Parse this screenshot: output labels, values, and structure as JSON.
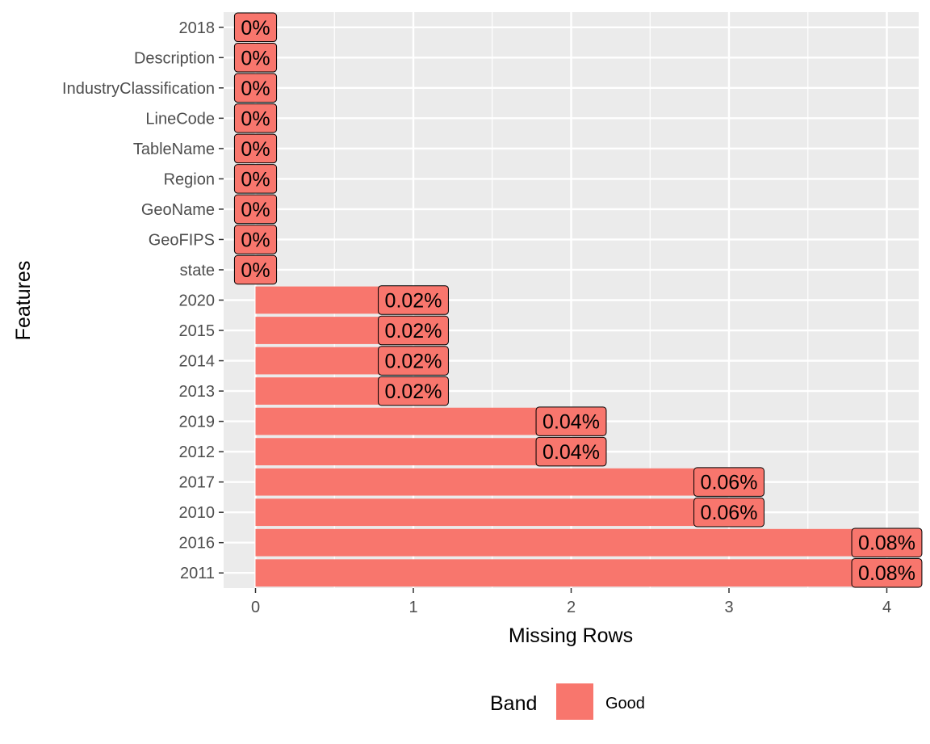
{
  "chart_data": {
    "type": "bar",
    "orientation": "horizontal",
    "xlabel": "Missing Rows",
    "ylabel": "Features",
    "xlim": [
      0,
      4.2
    ],
    "x_ticks": [
      0,
      1,
      2,
      3,
      4
    ],
    "grid": true,
    "categories": [
      "2018",
      "Description",
      "IndustryClassification",
      "LineCode",
      "TableName",
      "Region",
      "GeoName",
      "GeoFIPS",
      "state",
      "2020",
      "2015",
      "2014",
      "2013",
      "2019",
      "2012",
      "2017",
      "2010",
      "2016",
      "2011"
    ],
    "values": [
      0,
      0,
      0,
      0,
      0,
      0,
      0,
      0,
      0,
      1,
      1,
      1,
      1,
      2,
      2,
      3,
      3,
      4,
      4
    ],
    "data_labels": [
      "0%",
      "0%",
      "0%",
      "0%",
      "0%",
      "0%",
      "0%",
      "0%",
      "0%",
      "0.02%",
      "0.02%",
      "0.02%",
      "0.02%",
      "0.04%",
      "0.04%",
      "0.06%",
      "0.06%",
      "0.08%",
      "0.08%"
    ],
    "legend": {
      "title": "Band",
      "entries": [
        {
          "label": "Good",
          "color": "#F8766D"
        }
      ],
      "position": "bottom"
    },
    "colors": {
      "bar": "#F8766D",
      "panel": "#EBEBEB",
      "grid": "#FFFFFF"
    }
  }
}
